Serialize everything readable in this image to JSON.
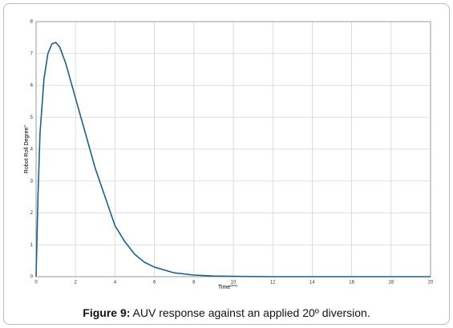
{
  "chart_data": {
    "type": "line",
    "xlabel": "Time",
    "xlabel_superscript": "(sec)",
    "ylabel": "Robot Roll Degree°",
    "x": [
      0,
      0.1,
      0.2,
      0.4,
      0.6,
      0.8,
      1.0,
      1.2,
      1.5,
      2,
      2.5,
      3,
      3.5,
      4,
      4.5,
      5,
      5.5,
      6,
      7,
      8,
      9,
      10,
      12,
      14,
      16,
      18,
      20
    ],
    "series": [
      {
        "color": "#1f5f8b",
        "values": [
          0,
          2.6,
          4.5,
          6.2,
          7.0,
          7.3,
          7.35,
          7.2,
          6.7,
          5.6,
          4.5,
          3.4,
          2.5,
          1.6,
          1.1,
          0.7,
          0.45,
          0.3,
          0.12,
          0.05,
          0.02,
          0.01,
          0,
          0,
          0,
          0,
          0
        ]
      }
    ],
    "xlim": [
      0,
      20
    ],
    "xticks": [
      0,
      2,
      4,
      6,
      8,
      10,
      12,
      14,
      16,
      18,
      20
    ],
    "ylim": [
      0,
      8
    ],
    "yticks": [
      0,
      1,
      2,
      3,
      4,
      5,
      6,
      7,
      8
    ],
    "grid": true
  },
  "caption": {
    "label": "Figure 9:",
    "text": "AUV response against an applied 20º diversion."
  }
}
